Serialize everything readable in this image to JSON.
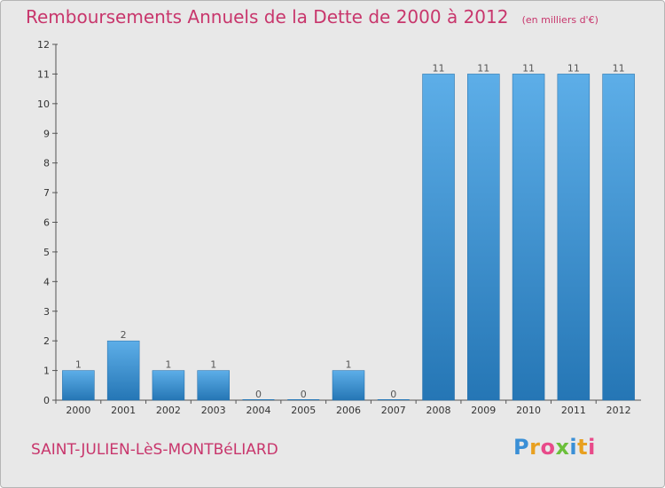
{
  "title": "Remboursements Annuels de la Dette de 2000 à 2012",
  "subtitle": "(en milliers d'€)",
  "commune": "SAINT-JULIEN-LèS-MONTBéLIARD",
  "logo": {
    "letters": [
      "P",
      "r",
      "o",
      "x",
      "i",
      "t",
      "i"
    ],
    "colors": [
      "#3a8fd6",
      "#e8a020",
      "#e84a8a",
      "#6bbf3a",
      "#3a8fd6",
      "#e8a020",
      "#e84a8a"
    ]
  },
  "colors": {
    "bar_top": "#5daee8",
    "bar_bottom": "#2576b5",
    "title": "#c8366c",
    "background": "#e8e8e8"
  },
  "chart_data": {
    "type": "bar",
    "categories": [
      "2000",
      "2001",
      "2002",
      "2003",
      "2004",
      "2005",
      "2006",
      "2007",
      "2008",
      "2009",
      "2010",
      "2011",
      "2012"
    ],
    "values": [
      1,
      2,
      1,
      1,
      0,
      0,
      1,
      0,
      11,
      11,
      11,
      11,
      11
    ],
    "value_labels": [
      "1",
      "2",
      "1",
      "1",
      "0",
      "0",
      "1",
      "0",
      "11",
      "11",
      "11",
      "11",
      "11"
    ],
    "yticks": [
      "0",
      "1",
      "2",
      "3",
      "4",
      "5",
      "6",
      "7",
      "8",
      "9",
      "10",
      "11",
      "12"
    ],
    "ylim": [
      0,
      12
    ],
    "xlabel": "",
    "ylabel": "",
    "grid": false,
    "legend": "none"
  }
}
